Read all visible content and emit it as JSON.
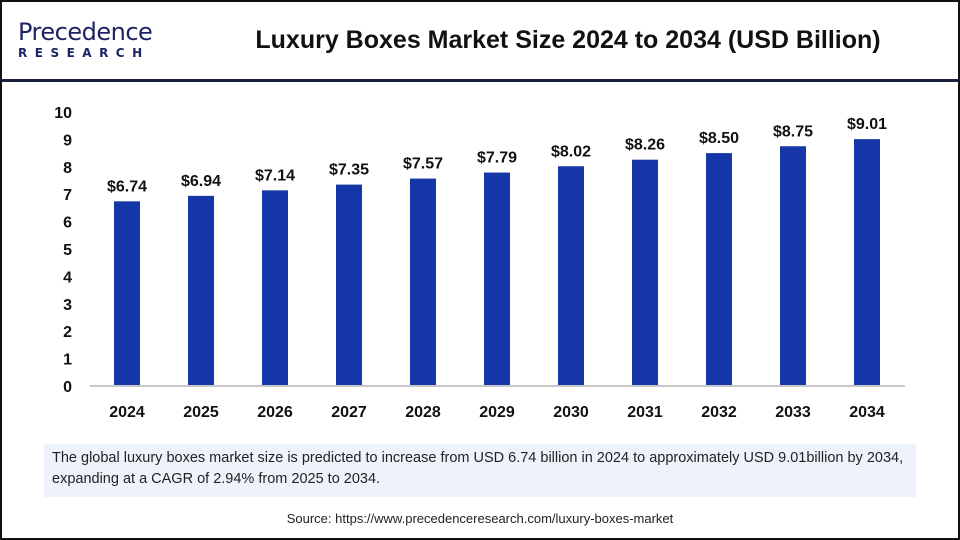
{
  "logo": {
    "text_top": "Precedence",
    "text_bottom": "RESEARCH"
  },
  "title": "Luxury Boxes Market Size 2024 to 2034 (USD Billion)",
  "chart_data": {
    "type": "bar",
    "title": "Luxury Boxes Market Size 2024 to 2034 (USD Billion)",
    "categories": [
      "2024",
      "2025",
      "2026",
      "2027",
      "2028",
      "2029",
      "2030",
      "2031",
      "2032",
      "2033",
      "2034"
    ],
    "values": [
      6.74,
      6.94,
      7.14,
      7.35,
      7.57,
      7.79,
      8.02,
      8.26,
      8.5,
      8.75,
      9.01
    ],
    "data_labels": [
      "$6.74",
      "$6.94",
      "$7.14",
      "$7.35",
      "$7.57",
      "$7.79",
      "$8.02",
      "$8.26",
      "$8.50",
      "$8.75",
      "$9.01"
    ],
    "yticks": [
      0,
      1,
      2,
      3,
      4,
      5,
      6,
      7,
      8,
      9,
      10
    ],
    "ylim": [
      0,
      10
    ],
    "xlabel": "",
    "ylabel": "",
    "grid": false,
    "bar_color": "#1536a6"
  },
  "note": "The global luxury boxes market size is predicted to increase from USD 6.74 billion in 2024 to approximately USD 9.01billion by 2034, expanding at a CAGR of 2.94% from 2025 to 2034.",
  "source": "Source: https://www.precedenceresearch.com/luxury-boxes-market"
}
